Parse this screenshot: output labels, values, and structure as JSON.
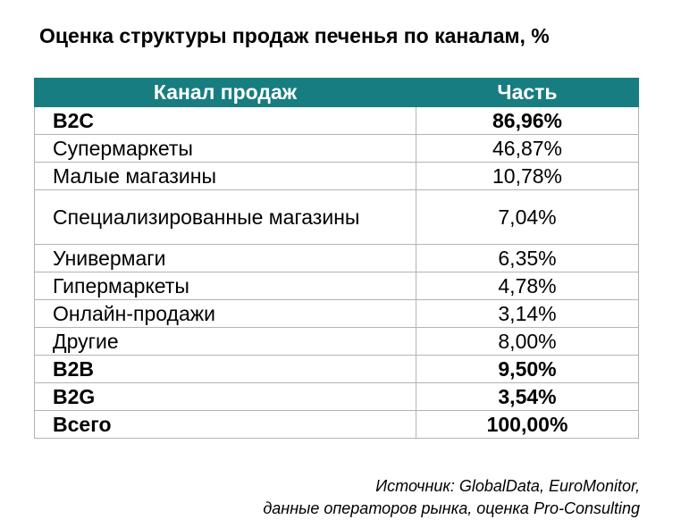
{
  "title": "Оценка структуры продаж печенья по каналам, %",
  "table": {
    "headers": [
      "Канал продаж",
      "Часть"
    ],
    "rows": [
      {
        "name": "B2C",
        "value": "86,96%",
        "bold": true
      },
      {
        "name": "Супермаркеты",
        "value": "46,87%",
        "bold": false
      },
      {
        "name": "Малые магазины",
        "value": "10,78%",
        "bold": false
      },
      {
        "name": "Специализированные магазины",
        "value": "7,04%",
        "bold": false
      },
      {
        "name": "Универмаги",
        "value": "6,35%",
        "bold": false
      },
      {
        "name": "Гипермаркеты",
        "value": "4,78%",
        "bold": false
      },
      {
        "name": "Онлайн-продажи",
        "value": "3,14%",
        "bold": false
      },
      {
        "name": "Другие",
        "value": "8,00%",
        "bold": false
      },
      {
        "name": "B2B",
        "value": "9,50%",
        "bold": true
      },
      {
        "name": "B2G",
        "value": "3,54%",
        "bold": true
      },
      {
        "name": "Всего",
        "value": "100,00%",
        "bold": true
      }
    ]
  },
  "source": {
    "line1": "Источник: GlobalData, EuroMonitor,",
    "line2": "данные операторов рынка, оценка Pro-Consulting"
  },
  "colors": {
    "header_bg": "#187d80",
    "header_text": "#ffffff",
    "border": "#b3b3b3"
  }
}
